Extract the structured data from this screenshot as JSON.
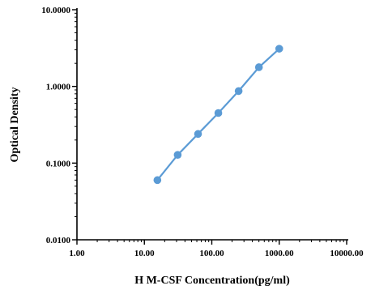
{
  "chart_data": {
    "type": "line",
    "xlabel": "H M-CSF Concentration(pg/ml)",
    "ylabel": "Optical Density",
    "x_scale": "log",
    "y_scale": "log",
    "xlim": [
      1,
      10000
    ],
    "ylim": [
      0.01,
      10
    ],
    "x_ticks": [
      1,
      10,
      100,
      1000,
      10000
    ],
    "x_tick_labels": [
      "1.00",
      "10.00",
      "100.00",
      "1000.00",
      "10000.00"
    ],
    "y_ticks": [
      0.01,
      0.1,
      1,
      10
    ],
    "y_tick_labels": [
      "0.0100",
      "0.1000",
      "1.0000",
      "10.0000"
    ],
    "grid": false,
    "series": [
      {
        "x": [
          15.6,
          31.2,
          62.5,
          125,
          250,
          500,
          1000
        ],
        "y": [
          0.06,
          0.128,
          0.24,
          0.45,
          0.87,
          1.78,
          3.1
        ],
        "color": "#5b9bd5"
      }
    ]
  }
}
